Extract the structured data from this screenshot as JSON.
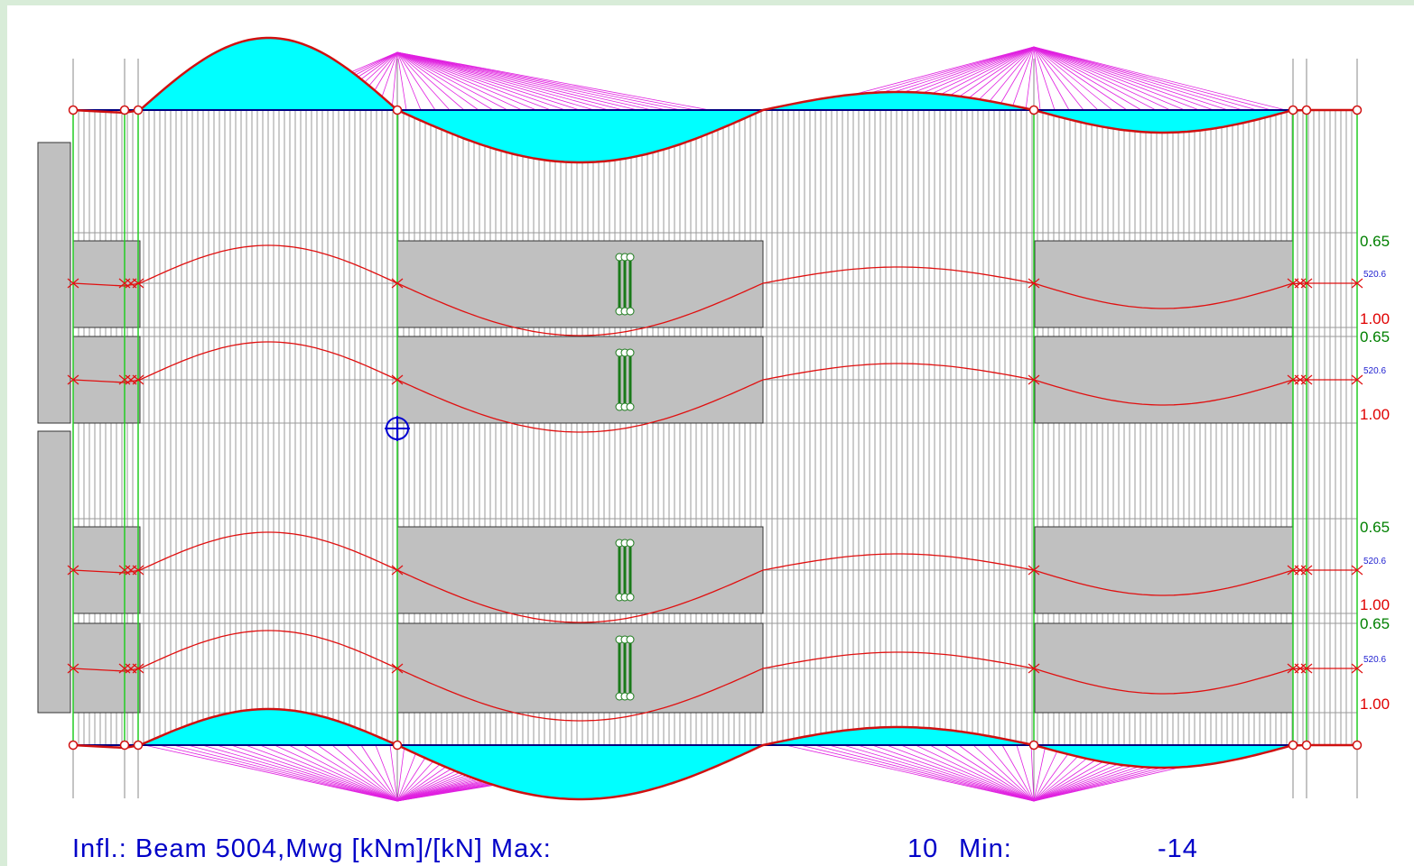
{
  "status": {
    "label": "Infl.: Beam 5004,Mwg [kNm]/[kN] Max:",
    "max": "10",
    "min_label": "Min:",
    "min": "-14"
  },
  "lanes": [
    {
      "top": "0.65",
      "mid": "520.6",
      "bottom": "1.00"
    },
    {
      "top": "0.65",
      "mid": "520.6",
      "bottom": "1.00"
    },
    {
      "top": "0.65",
      "mid": "520.6",
      "bottom": "1.00"
    },
    {
      "top": "0.65",
      "mid": "520.6",
      "bottom": "1.00"
    }
  ]
}
